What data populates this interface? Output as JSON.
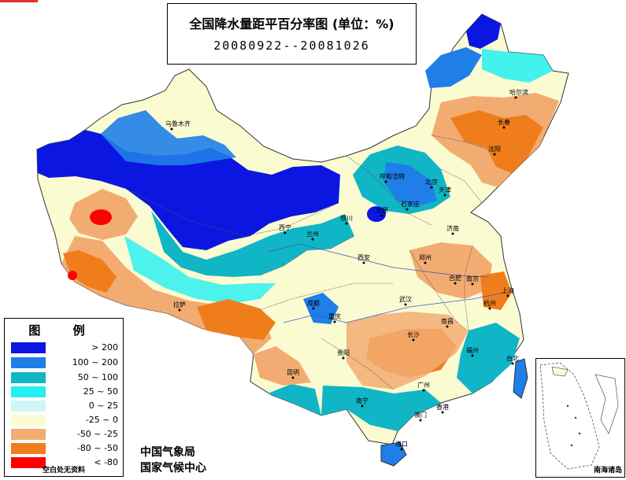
{
  "title": {
    "line1": "全国降水量距平百分率图 (单位：%)",
    "line2": "20080922--20081026"
  },
  "legend": {
    "title": "图 例",
    "items": [
      {
        "label": "> 200",
        "color": "#0b17e0"
      },
      {
        "label": "100 ~ 200",
        "color": "#1f7ee8"
      },
      {
        "label": "50 ~ 100",
        "color": "#10b6c6"
      },
      {
        "label": "25 ~ 50",
        "color": "#22f0f2"
      },
      {
        "label": "0 ~ 25",
        "color": "#cff6f8"
      },
      {
        "label": "-25 ~ 0",
        "color": "#fbfbd2"
      },
      {
        "label": "-50 ~ -25",
        "color": "#f2ac72"
      },
      {
        "label": "-80 ~ -50",
        "color": "#f07d1c"
      },
      {
        "label": "< -80",
        "color": "#ff0000"
      }
    ],
    "note": "空白处无资料"
  },
  "agency": {
    "line1": "中国气象局",
    "line2": "国家气候中心"
  },
  "inset": {
    "label": "南海诸岛"
  },
  "cities": [
    {
      "name": "乌鲁木齐"
    },
    {
      "name": "哈尔滨"
    },
    {
      "name": "长春"
    },
    {
      "name": "沈阳"
    },
    {
      "name": "呼和浩特"
    },
    {
      "name": "北京"
    },
    {
      "name": "天津"
    },
    {
      "name": "石家庄"
    },
    {
      "name": "太原"
    },
    {
      "name": "银川"
    },
    {
      "name": "西宁"
    },
    {
      "name": "兰州"
    },
    {
      "name": "济南"
    },
    {
      "name": "郑州"
    },
    {
      "name": "西安"
    },
    {
      "name": "合肥"
    },
    {
      "name": "南京"
    },
    {
      "name": "上海"
    },
    {
      "name": "杭州"
    },
    {
      "name": "武汉"
    },
    {
      "name": "拉萨"
    },
    {
      "name": "成都"
    },
    {
      "name": "重庆"
    },
    {
      "name": "南昌"
    },
    {
      "name": "长沙"
    },
    {
      "name": "福州"
    },
    {
      "name": "贵阳"
    },
    {
      "name": "台北"
    },
    {
      "name": "昆明"
    },
    {
      "name": "南宁"
    },
    {
      "name": "广州"
    },
    {
      "name": "香港"
    },
    {
      "name": "澳门"
    },
    {
      "name": "海口"
    }
  ]
}
